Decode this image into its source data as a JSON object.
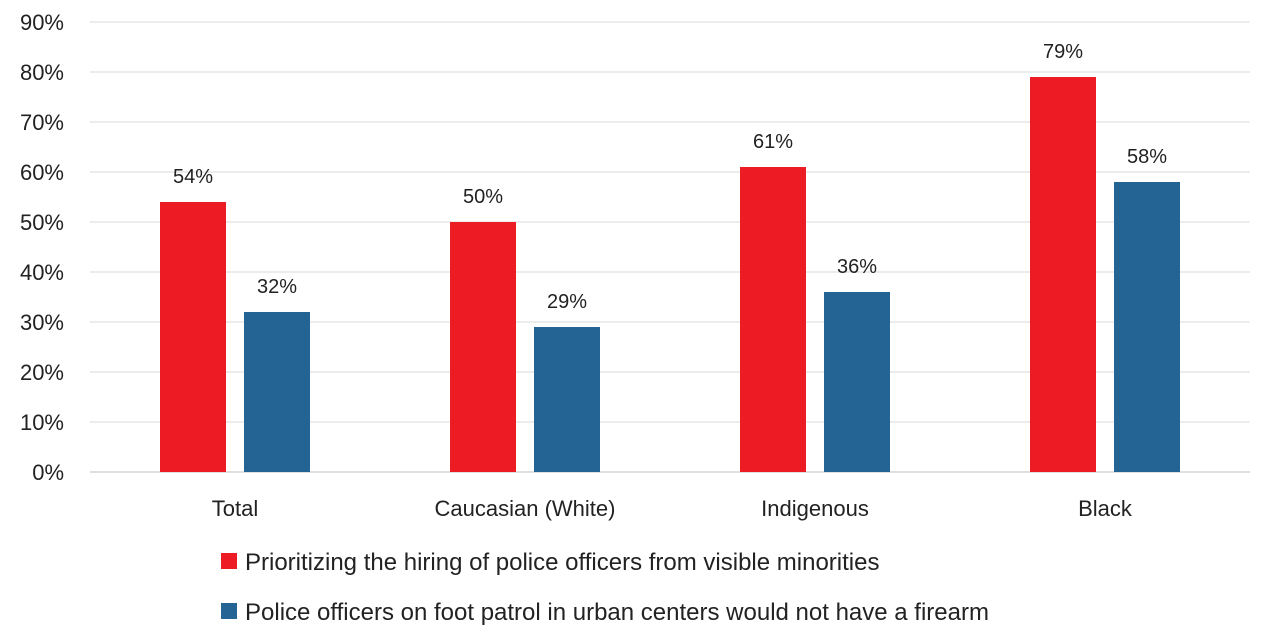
{
  "chart_data": {
    "type": "bar",
    "categories": [
      "Total",
      "Caucasian (White)",
      "Indigenous",
      "Black"
    ],
    "series": [
      {
        "name": "Prioritizing the hiring of police officers from visible minorities",
        "values": [
          54,
          50,
          61,
          79
        ],
        "color": "#ed1c24"
      },
      {
        "name": "Police officers on foot patrol in urban centers would not have a firearm",
        "values": [
          32,
          29,
          36,
          58
        ],
        "color": "#236495"
      }
    ],
    "data_labels": [
      [
        "54%",
        "50%",
        "61%",
        "79%"
      ],
      [
        "32%",
        "29%",
        "36%",
        "58%"
      ]
    ],
    "ylim": [
      0,
      90
    ],
    "yticks": [
      "0%",
      "10%",
      "20%",
      "30%",
      "40%",
      "50%",
      "60%",
      "70%",
      "80%",
      "90%"
    ],
    "grid": true,
    "legend_position": "bottom",
    "title": "",
    "xlabel": "",
    "ylabel": ""
  }
}
